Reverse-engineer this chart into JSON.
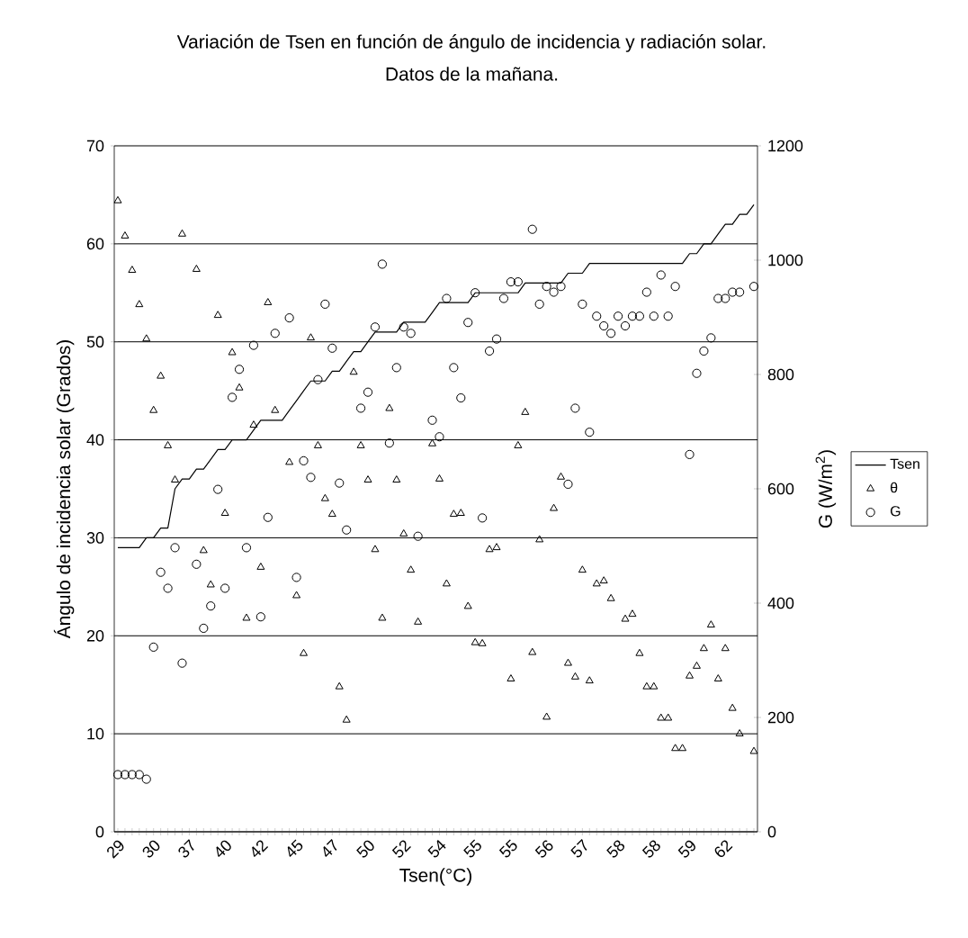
{
  "chart_data": {
    "type": "line",
    "title": "Variación de  Tsen  en función de ángulo de incidencia y radiación solar.",
    "subtitle": "Datos de la mañana.",
    "xlabel": "Tsen(°C)",
    "ylabel": "Ángulo de incidencia solar (Grados)",
    "y2label": "G (W/m$^{2}$)",
    "categories": [
      "29",
      null,
      null,
      null,
      null,
      "30",
      null,
      null,
      null,
      null,
      "37",
      null,
      null,
      null,
      null,
      "40",
      null,
      null,
      null,
      null,
      "42",
      null,
      null,
      null,
      null,
      "45",
      null,
      null,
      null,
      null,
      "47",
      null,
      null,
      null,
      null,
      "50",
      null,
      null,
      null,
      null,
      "52",
      null,
      null,
      null,
      null,
      "54",
      null,
      null,
      null,
      null,
      "55",
      null,
      null,
      null,
      null,
      "55",
      null,
      null,
      null,
      null,
      "56",
      null,
      null,
      null,
      null,
      "57",
      null,
      null,
      null,
      null,
      "58",
      null,
      null,
      null,
      null,
      "58",
      null,
      null,
      null,
      null,
      "59",
      null,
      null,
      null,
      null,
      "62",
      null,
      null,
      null,
      null
    ],
    "series": [
      {
        "name": "Tsen",
        "color": "#000000",
        "marker": "none",
        "line_style": "solid",
        "values": [
          29,
          29,
          29,
          29,
          30,
          30,
          31,
          31,
          35,
          36,
          36,
          37,
          37,
          38,
          39,
          39,
          40,
          40,
          40,
          41,
          42,
          42,
          42,
          42,
          43,
          44,
          45,
          46,
          46,
          46,
          47,
          47,
          48,
          49,
          49,
          50,
          51,
          51,
          51,
          51,
          52,
          52,
          52,
          52,
          53,
          54,
          54,
          54,
          54,
          54,
          55,
          55,
          55,
          55,
          55,
          55,
          55,
          56,
          56,
          56,
          56,
          56,
          56,
          57,
          57,
          57,
          58,
          58,
          58,
          58,
          58,
          58,
          58,
          58,
          58,
          58,
          58,
          58,
          58,
          58,
          59,
          59,
          60,
          60,
          61,
          62,
          62,
          63,
          63,
          64
        ]
      },
      {
        "name": "θ",
        "type": "scatter",
        "color": "#000000",
        "marker": "triangle",
        "values": [
          64.4,
          60.8,
          57.3,
          53.8,
          50.3,
          43,
          46.5,
          39.4,
          35.9,
          61,
          null,
          57.4,
          28.7,
          25.2,
          52.7,
          32.5,
          48.9,
          45.3,
          21.8,
          41.5,
          27,
          54,
          43,
          null,
          37.7,
          24.1,
          18.2,
          50.4,
          39.4,
          34,
          32.4,
          14.8,
          11.4,
          46.9,
          39.4,
          35.9,
          28.8,
          21.8,
          43.2,
          35.9,
          30.4,
          26.7,
          21.4,
          null,
          39.6,
          36,
          25.3,
          32.4,
          32.5,
          23,
          19.3,
          19.2,
          28.8,
          29,
          null,
          15.6,
          39.4,
          42.8,
          18.3,
          29.8,
          11.7,
          33,
          36.2,
          17.2,
          15.8,
          26.7,
          15.4,
          25.3,
          25.6,
          23.8,
          null,
          21.7,
          22.2,
          18.2,
          14.8,
          14.8,
          11.6,
          11.6,
          8.5,
          8.5,
          15.9,
          16.9,
          18.7,
          21.1,
          15.6,
          18.7,
          12.6,
          10,
          null,
          8.2
        ]
      },
      {
        "name": "G",
        "type": "scatter",
        "axis": "y2",
        "color": "#000000",
        "marker": "circle",
        "values": [
          100,
          100,
          100,
          100,
          92,
          323,
          454,
          426,
          497,
          295,
          null,
          468,
          356,
          395,
          599,
          426,
          760,
          809,
          497,
          851,
          376,
          550,
          872,
          null,
          899,
          445,
          649,
          620,
          791,
          923,
          846,
          610,
          528,
          null,
          741,
          769,
          883,
          993,
          680,
          812,
          883,
          872,
          517,
          null,
          720,
          691,
          933,
          812,
          759,
          891,
          943,
          549,
          841,
          862,
          933,
          962,
          962,
          null,
          1054,
          923,
          954,
          944,
          954,
          608,
          741,
          923,
          699,
          902,
          885,
          872,
          902,
          885,
          902,
          902,
          944,
          902,
          974,
          902,
          954,
          null,
          660,
          802,
          841,
          864,
          933,
          933,
          944,
          944,
          null,
          954
        ]
      }
    ],
    "ylim": [
      0,
      70
    ],
    "yticks": [
      0,
      10,
      20,
      30,
      40,
      50,
      60,
      70
    ],
    "y2lim": [
      0,
      1200
    ],
    "y2ticks": [
      0,
      200,
      400,
      600,
      800,
      1000,
      1200
    ],
    "grid": "y",
    "legend": "right"
  }
}
